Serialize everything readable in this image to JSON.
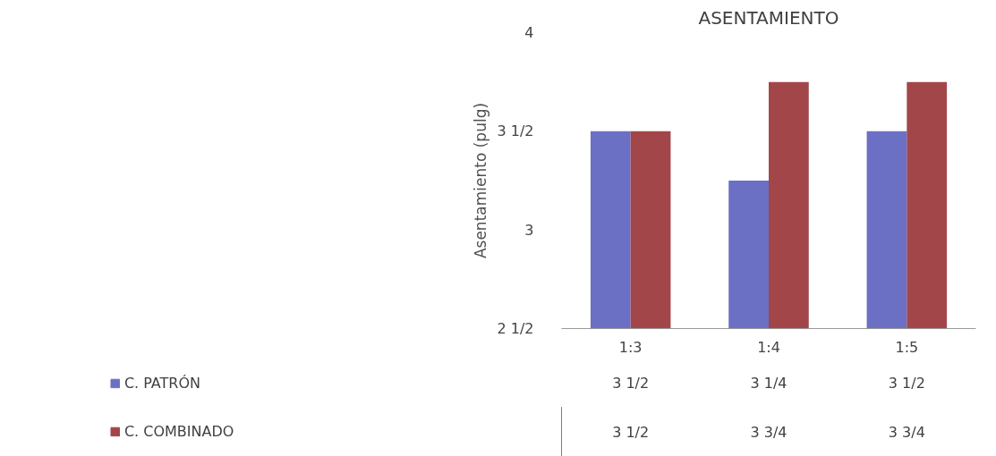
{
  "chart_data": {
    "type": "bar",
    "title": "ASENTAMIENTO",
    "ylabel": "Asentamiento (pulg)",
    "categories": [
      "1:3",
      "1:4",
      "1:5"
    ],
    "series": [
      {
        "name": "C. PATRÓN",
        "color": "#6b70c4",
        "values": [
          3.5,
          3.25,
          3.5
        ],
        "value_labels": [
          "3 1/2",
          "3 1/4",
          "3 1/2"
        ]
      },
      {
        "name": "C. COMBINADO",
        "color": "#a2464a",
        "values": [
          3.5,
          3.75,
          3.75
        ],
        "value_labels": [
          "3 1/2",
          "3 3/4",
          "3 3/4"
        ]
      }
    ],
    "ylim": [
      2.5,
      4
    ],
    "yticks": [
      {
        "value": 2.5,
        "label": "2 1/2"
      },
      3,
      {
        "value": 3.5,
        "label": "3 1/2"
      },
      4
    ],
    "grid": false,
    "legend": "bottom left"
  }
}
